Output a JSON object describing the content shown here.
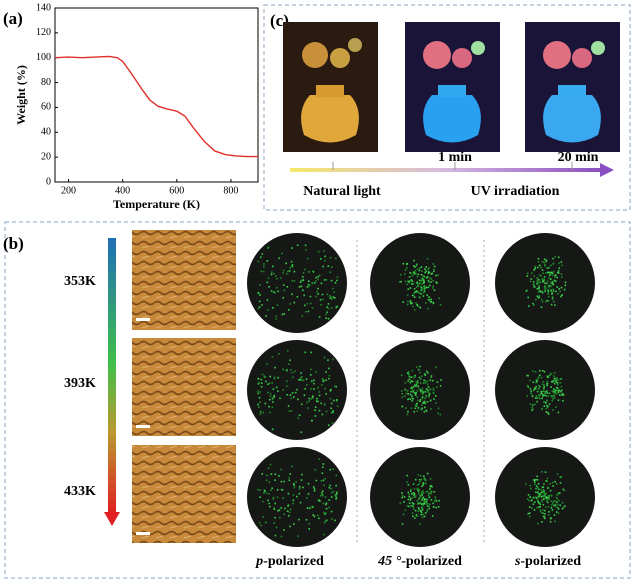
{
  "chart_data": {
    "type": "line",
    "panel": "(a)",
    "x_label": "Temperature (K)",
    "y_label": "Weight (%)",
    "xlim": [
      150,
      900
    ],
    "ylim": [
      0,
      140
    ],
    "xticks": [
      200,
      400,
      600,
      800
    ],
    "yticks": [
      0,
      20,
      40,
      60,
      80,
      100,
      120,
      140
    ],
    "series": [
      {
        "color": "#e0302a",
        "x": [
          150,
          200,
          250,
          300,
          350,
          380,
          400,
          430,
          470,
          500,
          530,
          560,
          600,
          630,
          660,
          700,
          740,
          780,
          820,
          860,
          900
        ],
        "values": [
          100,
          100.5,
          100,
          100.5,
          101,
          100,
          97,
          88,
          75,
          66,
          61,
          59,
          57,
          53,
          44,
          33,
          25,
          22,
          21,
          20.5,
          20.5
        ]
      }
    ]
  },
  "panel_c": {
    "label": "(c)",
    "times": [
      "1 min",
      "20 min"
    ],
    "natural": "Natural light",
    "uv": "UV irradiation"
  },
  "panel_b": {
    "label": "(b)",
    "temperatures": [
      "353K",
      "393K",
      "433K"
    ],
    "columns": [
      {
        "italic": "p",
        "rest": "-polarized"
      },
      {
        "italic": "45 °",
        "rest": "-polarized"
      },
      {
        "italic": "s",
        "rest": "-polarized"
      }
    ]
  }
}
